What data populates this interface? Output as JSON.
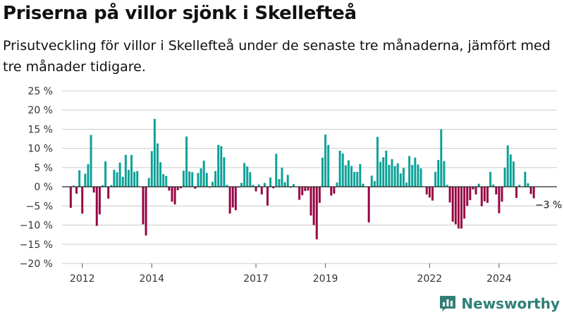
{
  "title": "Priserna på villor sjönk i Skellefteå",
  "subtitle": "Prisutveckling för villor i Skellefteå under de senaste tre månaderna, jämfört med tre månader tidigare.",
  "brand": "Newsworthy",
  "colors": {
    "positive": "#0aa197",
    "negative": "#960343",
    "grid": "#cccccc",
    "brand": "#2f7f78"
  },
  "chart_data": {
    "type": "bar",
    "ylim": [
      -20,
      25
    ],
    "yticks": [
      25,
      20,
      15,
      10,
      5,
      0,
      -5,
      -10,
      -15,
      -20
    ],
    "ytick_labels": [
      "25 %",
      "20 %",
      "15 %",
      "10 %",
      "5 %",
      "0 %",
      "−5 %",
      "−10 %",
      "−15 %",
      "−20 %"
    ],
    "xlim": [
      "2011-06",
      "2025-09"
    ],
    "xticks": [
      {
        "x": "2012-01",
        "label": "2012"
      },
      {
        "x": "2014-01",
        "label": "2014"
      },
      {
        "x": "2017-01",
        "label": "2017"
      },
      {
        "x": "2019-01",
        "label": "2019"
      },
      {
        "x": "2022-01",
        "label": "2022"
      },
      {
        "x": "2024-01",
        "label": "2024"
      }
    ],
    "x_start": "2011-09",
    "x_step": "1 month",
    "values": [
      -5.5,
      0.3,
      -1.8,
      4.3,
      -7.0,
      3.4,
      5.9,
      13.5,
      -1.5,
      -10.2,
      -7.2,
      0.4,
      6.6,
      -3.1,
      0.4,
      4.4,
      3.8,
      6.3,
      2.6,
      8.3,
      4.4,
      8.3,
      3.9,
      4.1,
      0,
      -9.8,
      -12.7,
      2.3,
      9.3,
      17.7,
      11.3,
      6.4,
      3.3,
      2.8,
      -1.0,
      -3.9,
      -4.6,
      -0.9,
      -0.4,
      4.2,
      13.1,
      4.0,
      3.8,
      -0.5,
      3.6,
      4.8,
      6.8,
      3.6,
      -0.2,
      1.3,
      4.1,
      10.9,
      10.6,
      7.7,
      0.5,
      -7.0,
      -5.4,
      -6.1,
      -0.2,
      1.0,
      6.2,
      5.3,
      3.8,
      0.5,
      -1.2,
      0.6,
      -2.0,
      1.0,
      -4.9,
      2.4,
      -0.4,
      8.6,
      2.0,
      5.0,
      1.2,
      3.1,
      -0.2,
      0.7,
      0,
      -3.4,
      -2.2,
      -1.1,
      -1.0,
      -7.5,
      -10.0,
      -13.7,
      -4.2,
      7.6,
      13.6,
      10.9,
      -2.3,
      -1.8,
      1.1,
      9.4,
      8.7,
      5.6,
      6.9,
      5.4,
      3.9,
      3.9,
      5.9,
      0.8,
      0,
      -9.3,
      2.9,
      1.5,
      13.0,
      6.5,
      7.7,
      9.4,
      5.7,
      7.2,
      5.4,
      6.1,
      3.5,
      4.9,
      1.1,
      8.0,
      5.7,
      7.6,
      5.8,
      4.8,
      0,
      -2.0,
      -2.8,
      -3.6,
      3.9,
      7.0,
      15.0,
      6.7,
      0.5,
      -4.1,
      -9.1,
      -9.8,
      -10.9,
      -10.9,
      -8.3,
      -5.0,
      -3.5,
      -0.7,
      -2.0,
      0.8,
      -5.1,
      -3.8,
      -4.2,
      3.9,
      0.6,
      -2.0,
      -6.9,
      -3.9,
      5.0,
      10.8,
      8.4,
      6.6,
      -2.9,
      0.5,
      0,
      3.9,
      0.9,
      -1.9,
      -3.0
    ],
    "annotations": [
      {
        "label": "−3 %"
      }
    ]
  }
}
